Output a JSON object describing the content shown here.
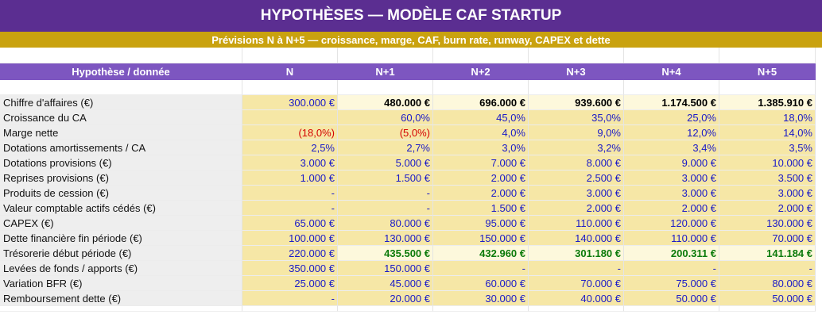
{
  "title": "HYPOTHÈSES — MODÈLE CAF STARTUP",
  "subtitle": "Prévisions N à N+5 — croissance, marge, CAF, burn rate, runway, CAPEX et dette",
  "columns": [
    "Hypothèse / donnée",
    "N",
    "N+1",
    "N+2",
    "N+3",
    "N+4",
    "N+5"
  ],
  "rows": [
    {
      "label": "Chiffre d'affaires (€)",
      "values": [
        "300.000 €",
        "480.000 €",
        "696.000 €",
        "939.600 €",
        "1.174.500 €",
        "1.385.910 €"
      ]
    },
    {
      "label": "Croissance du CA",
      "values": [
        "",
        "60,0%",
        "45,0%",
        "35,0%",
        "25,0%",
        "18,0%"
      ]
    },
    {
      "label": "Marge nette",
      "values": [
        "(18,0%)",
        "(5,0%)",
        "4,0%",
        "9,0%",
        "12,0%",
        "14,0%"
      ]
    },
    {
      "label": "Dotations amortissements / CA",
      "values": [
        "2,5%",
        "2,7%",
        "3,0%",
        "3,2%",
        "3,4%",
        "3,5%"
      ]
    },
    {
      "label": "Dotations provisions (€)",
      "values": [
        "3.000 €",
        "5.000 €",
        "7.000 €",
        "8.000 €",
        "9.000 €",
        "10.000 €"
      ]
    },
    {
      "label": "Reprises provisions (€)",
      "values": [
        "1.000 €",
        "1.500 €",
        "2.000 €",
        "2.500 €",
        "3.000 €",
        "3.500 €"
      ]
    },
    {
      "label": "Produits de cession (€)",
      "values": [
        "-",
        "-",
        "2.000 €",
        "3.000 €",
        "3.000 €",
        "3.000 €"
      ]
    },
    {
      "label": "Valeur comptable actifs cédés (€)",
      "values": [
        "-",
        "-",
        "1.500 €",
        "2.000 €",
        "2.000 €",
        "2.000 €"
      ]
    },
    {
      "label": "CAPEX (€)",
      "values": [
        "65.000 €",
        "80.000 €",
        "95.000 €",
        "110.000 €",
        "120.000 €",
        "130.000 €"
      ]
    },
    {
      "label": "Dette financière fin période (€)",
      "values": [
        "100.000 €",
        "130.000 €",
        "150.000 €",
        "140.000 €",
        "110.000 €",
        "70.000 €"
      ]
    },
    {
      "label": "Trésorerie début période (€)",
      "values": [
        "220.000 €",
        "435.500 €",
        "432.960 €",
        "301.180 €",
        "200.311 €",
        "141.184 €"
      ]
    },
    {
      "label": "Levées de fonds / apports (€)",
      "values": [
        "350.000 €",
        "150.000 €",
        "-",
        "-",
        "-",
        "-"
      ]
    },
    {
      "label": "Variation BFR (€)",
      "values": [
        "25.000 €",
        "45.000 €",
        "60.000 €",
        "70.000 €",
        "75.000 €",
        "80.000 €"
      ]
    },
    {
      "label": "Remboursement dette (€)",
      "values": [
        "-",
        "20.000 €",
        "30.000 €",
        "40.000 €",
        "50.000 €",
        "50.000 €"
      ]
    }
  ],
  "colors": {
    "title_bg": "#5b2e91",
    "subtitle_bg": "#c9a20f",
    "header_bg": "#7d56c0",
    "input_bg": "#f6e7a6",
    "calc_bg": "#fdf8dc",
    "blue": "#1a1ac8",
    "red": "#d40000",
    "green": "#0a7a0a"
  }
}
